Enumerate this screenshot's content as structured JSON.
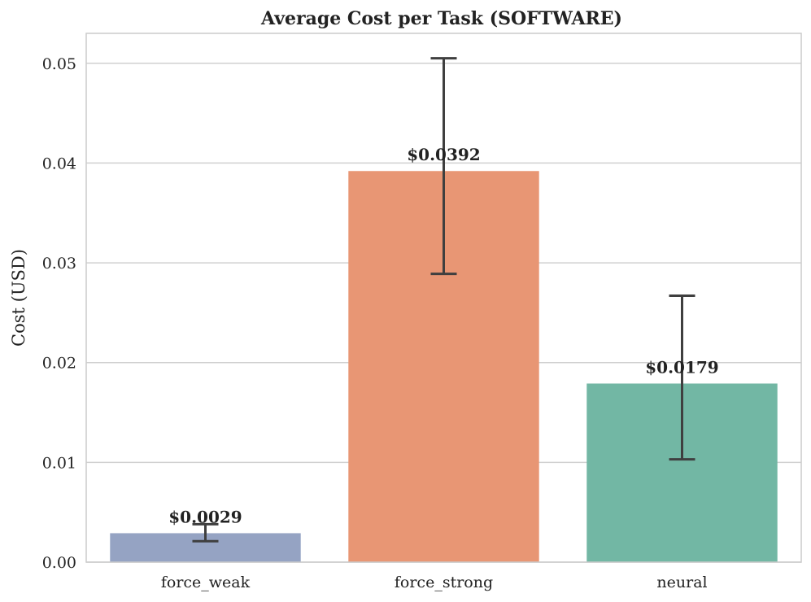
{
  "chart_data": {
    "type": "bar",
    "title": "Average Cost per Task (SOFTWARE)",
    "xlabel": "",
    "ylabel": "Cost (USD)",
    "ylim": [
      0,
      0.053
    ],
    "yticks": [
      "0.00",
      "0.01",
      "0.02",
      "0.03",
      "0.04",
      "0.05"
    ],
    "ytick_values": [
      0,
      0.01,
      0.02,
      0.03,
      0.04,
      0.05
    ],
    "grid": true,
    "categories": [
      "force_weak",
      "force_strong",
      "neural"
    ],
    "values": [
      0.0029,
      0.0392,
      0.0179
    ],
    "error_low": [
      0.0021,
      0.0289,
      0.0103
    ],
    "error_high": [
      0.0038,
      0.0505,
      0.0267
    ],
    "data_labels": [
      "$0.0029",
      "$0.0392",
      "$0.0179"
    ],
    "colors": [
      "#95a3c3",
      "#e89674",
      "#72b7a4"
    ]
  }
}
